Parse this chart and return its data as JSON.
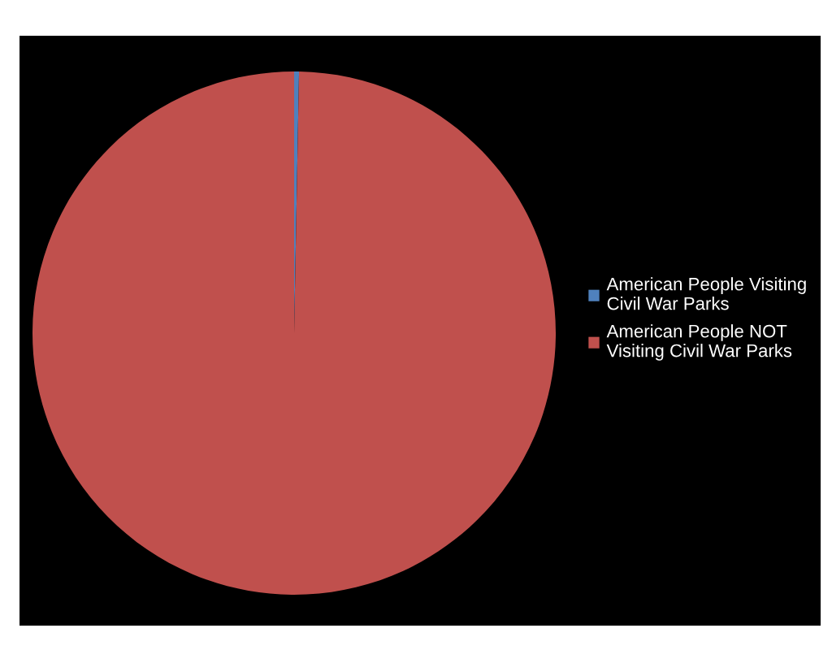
{
  "chart_data": {
    "type": "pie",
    "categories": [
      "American People Visiting Civil War Parks",
      "American People NOT Visiting Civil War Parks"
    ],
    "values": [
      0.3,
      99.7
    ],
    "colors": [
      "#4f81bd",
      "#c0504d"
    ],
    "legend": "right"
  }
}
